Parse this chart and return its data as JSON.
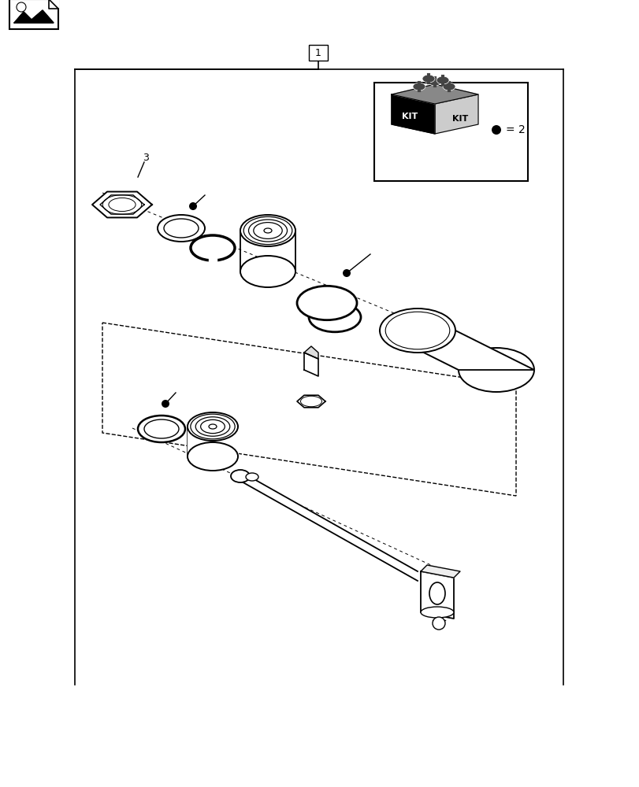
{
  "bg_color": "#ffffff",
  "line_color": "#000000",
  "label_1": "1",
  "label_2": "2",
  "label_3": "3",
  "bullet_eq": "= 2"
}
